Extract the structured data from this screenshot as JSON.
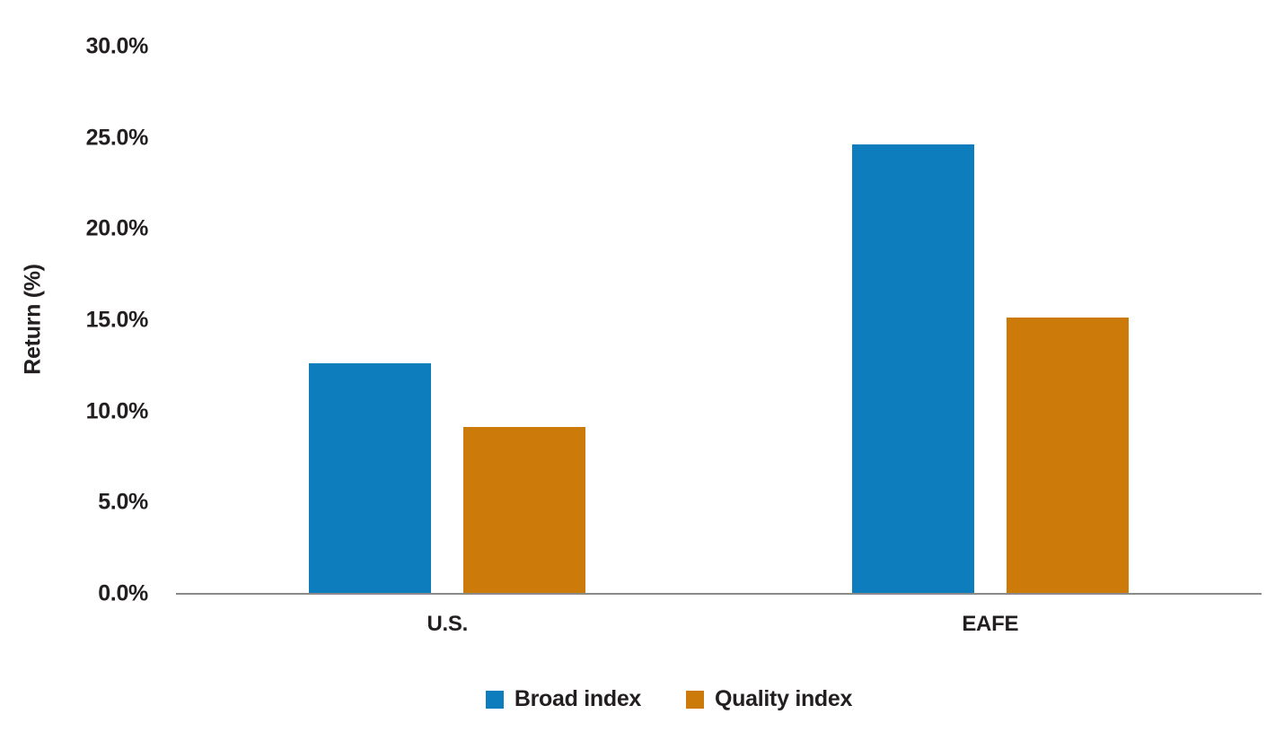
{
  "chart_data": {
    "type": "bar",
    "categories": [
      "U.S.",
      "EAFE"
    ],
    "series": [
      {
        "name": "Broad index",
        "color": "#0d7dbe",
        "values": [
          12.6,
          24.6
        ]
      },
      {
        "name": "Quality index",
        "color": "#cc7a0a",
        "values": [
          9.1,
          15.1
        ]
      }
    ],
    "title": "",
    "xlabel": "",
    "ylabel": "Return (%)",
    "ylim": [
      0,
      30
    ],
    "ytick_step": 5,
    "ytick_labels": [
      "0.0%",
      "5.0%",
      "10.0%",
      "15.0%",
      "20.0%",
      "25.0%",
      "30.0%"
    ],
    "grid": false,
    "legend_position": "bottom"
  },
  "colors": {
    "background": "#ffffff",
    "text": "#231f20",
    "axis_line": "#8a8a8a"
  }
}
